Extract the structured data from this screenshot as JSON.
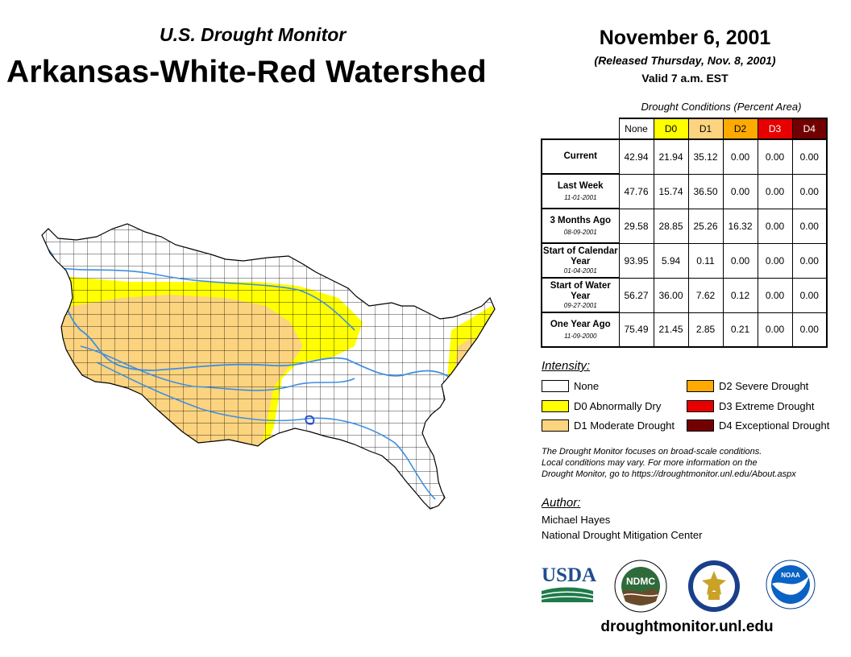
{
  "header": {
    "subtitle": "U.S. Drought Monitor",
    "title": "Arkansas-White-Red Watershed",
    "date": "November 6, 2001",
    "released": "(Released Thursday, Nov. 8, 2001)",
    "valid": "Valid 7 a.m. EST"
  },
  "table": {
    "caption": "Drought Conditions (Percent Area)",
    "columns": [
      {
        "label": "None",
        "color": "#ffffff"
      },
      {
        "label": "D0",
        "color": "#ffff00"
      },
      {
        "label": "D1",
        "color": "#fcd37f"
      },
      {
        "label": "D2",
        "color": "#ffaa00"
      },
      {
        "label": "D3",
        "color": "#e60000"
      },
      {
        "label": "D4",
        "color": "#730000"
      }
    ],
    "rows": [
      {
        "label": "Current",
        "date": "",
        "values": [
          "42.94",
          "21.94",
          "35.12",
          "0.00",
          "0.00",
          "0.00"
        ]
      },
      {
        "label": "Last Week",
        "date": "11-01-2001",
        "values": [
          "47.76",
          "15.74",
          "36.50",
          "0.00",
          "0.00",
          "0.00"
        ]
      },
      {
        "label": "3 Months Ago",
        "date": "08-09-2001",
        "values": [
          "29.58",
          "28.85",
          "25.26",
          "16.32",
          "0.00",
          "0.00"
        ]
      },
      {
        "label": "Start of Calendar Year",
        "date": "01-04-2001",
        "values": [
          "93.95",
          "5.94",
          "0.11",
          "0.00",
          "0.00",
          "0.00"
        ]
      },
      {
        "label": "Start of Water Year",
        "date": "09-27-2001",
        "values": [
          "56.27",
          "36.00",
          "7.62",
          "0.12",
          "0.00",
          "0.00"
        ]
      },
      {
        "label": "One Year Ago",
        "date": "11-09-2000",
        "values": [
          "75.49",
          "21.45",
          "2.85",
          "0.21",
          "0.00",
          "0.00"
        ]
      }
    ]
  },
  "legend": {
    "title": "Intensity:",
    "items": [
      {
        "label": "None",
        "color": "#ffffff"
      },
      {
        "label": "D0 Abnormally Dry",
        "color": "#ffff00"
      },
      {
        "label": "D1 Moderate Drought",
        "color": "#fcd37f"
      },
      {
        "label": "D2 Severe Drought",
        "color": "#ffaa00"
      },
      {
        "label": "D3 Extreme Drought",
        "color": "#e60000"
      },
      {
        "label": "D4 Exceptional Drought",
        "color": "#730000"
      }
    ]
  },
  "disclaimer": {
    "line1": "The Drought Monitor focuses on broad-scale conditions.",
    "line2": "Local conditions may vary. For more information on the",
    "line3": "Drought Monitor, go to https://droughtmonitor.unl.edu/About.aspx"
  },
  "author": {
    "title": "Author:",
    "name": "Michael Hayes",
    "org": "National Drought Mitigation Center"
  },
  "logos": {
    "usda": "USDA",
    "ndmc": "NDMC",
    "noaa": "NOAA"
  },
  "website": "droughtmonitor.unl.edu",
  "colors": {
    "river": "#3f8fe0",
    "county_line": "#000000"
  }
}
